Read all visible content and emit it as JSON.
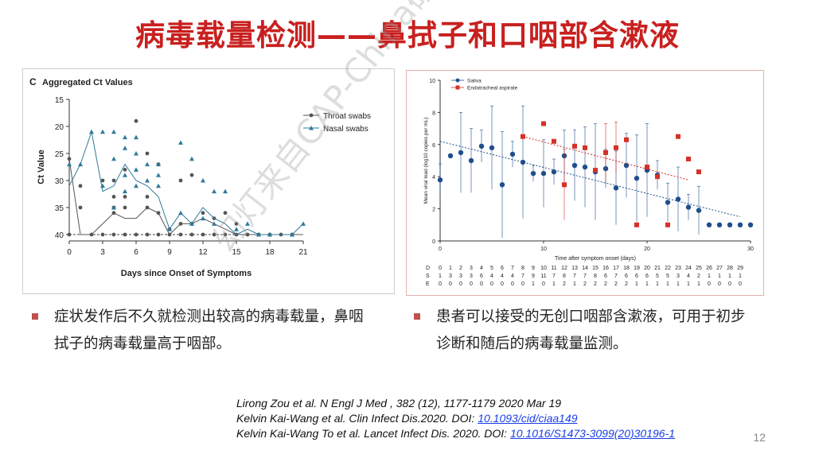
{
  "slide": {
    "title": "病毒载量检测——鼻拭子和口咽部含漱液",
    "page_number": "12",
    "watermark": "幻灯来自CAP-China研究平台"
  },
  "bullets": [
    "症状发作后不久就检测出较高的病毒载量，鼻咽拭子的病毒载量高于咽部。",
    "患者可以接受的无创口咽部含漱液，可用于初步诊断和随后的病毒载量监测。"
  ],
  "references": [
    {
      "text": "Lirong Zou et al. N Engl J Med , 382 (12), 1177-1179  2020 Mar 19",
      "doi": ""
    },
    {
      "text": "Kelvin Kai-Wang et al. Clin Infect Dis.2020. DOI: ",
      "doi": "10.1093/cid/ciaa149"
    },
    {
      "text": "Kelvin Kai-Wang To et al. Lancet Infect Dis. 2020. DOI: ",
      "doi": "10.1016/S1473-3099(20)30196-1"
    }
  ],
  "colors": {
    "title": "#c8201f",
    "throat": "#555555",
    "nasal": "#2e7a9a",
    "saliva": "#1f4e8c",
    "eta": "#d73027"
  },
  "chart_data": [
    {
      "type": "scatter",
      "panel_label": "C",
      "title": "Aggregated Ct Values",
      "xlabel": "Days since Onset of Symptoms",
      "ylabel": "Ct Value",
      "xlim": [
        0,
        21
      ],
      "ylim": [
        15,
        40
      ],
      "y_inverted": true,
      "x_ticks": [
        0,
        3,
        6,
        9,
        12,
        15,
        18,
        21
      ],
      "y_ticks": [
        15,
        20,
        25,
        30,
        35,
        40
      ],
      "legend_position": "top-right",
      "series": [
        {
          "name": "Throat swabs",
          "points": [
            [
              0,
              26
            ],
            [
              0,
              40
            ],
            [
              1,
              31
            ],
            [
              1,
              35
            ],
            [
              2,
              40
            ],
            [
              3,
              30
            ],
            [
              3,
              40
            ],
            [
              4,
              30
            ],
            [
              4,
              33
            ],
            [
              4,
              35
            ],
            [
              4,
              36
            ],
            [
              4,
              40
            ],
            [
              5,
              28
            ],
            [
              5,
              33
            ],
            [
              5,
              35
            ],
            [
              5,
              40
            ],
            [
              6,
              19
            ],
            [
              6,
              40
            ],
            [
              7,
              25
            ],
            [
              7,
              33
            ],
            [
              7,
              35
            ],
            [
              7,
              40
            ],
            [
              8,
              27
            ],
            [
              8,
              36
            ],
            [
              8,
              40
            ],
            [
              9,
              39
            ],
            [
              9,
              40
            ],
            [
              10,
              30
            ],
            [
              10,
              38
            ],
            [
              10,
              40
            ],
            [
              11,
              29
            ],
            [
              11,
              38
            ],
            [
              11,
              40
            ],
            [
              12,
              36
            ],
            [
              12,
              40
            ],
            [
              13,
              37
            ],
            [
              13,
              40
            ],
            [
              14,
              36
            ],
            [
              14,
              40
            ],
            [
              15,
              38
            ],
            [
              15,
              40
            ],
            [
              16,
              40
            ],
            [
              17,
              40
            ],
            [
              18,
              40
            ],
            [
              19,
              40
            ],
            [
              20,
              40
            ]
          ],
          "line": [
            [
              0,
              26
            ],
            [
              1,
              40
            ],
            [
              2,
              40
            ],
            [
              3,
              38
            ],
            [
              4,
              36
            ],
            [
              5,
              37
            ],
            [
              6,
              37
            ],
            [
              7,
              35
            ],
            [
              8,
              36
            ],
            [
              9,
              40
            ],
            [
              10,
              38
            ],
            [
              11,
              38
            ],
            [
              12,
              37
            ],
            [
              13,
              38
            ],
            [
              14,
              39
            ],
            [
              15,
              40
            ],
            [
              21,
              40
            ]
          ]
        },
        {
          "name": "Nasal swabs",
          "points": [
            [
              0,
              27
            ],
            [
              1,
              27
            ],
            [
              2,
              21
            ],
            [
              3,
              21
            ],
            [
              3,
              31
            ],
            [
              4,
              21
            ],
            [
              4,
              26
            ],
            [
              4,
              35
            ],
            [
              5,
              22
            ],
            [
              5,
              24
            ],
            [
              5,
              29
            ],
            [
              5,
              32
            ],
            [
              6,
              22
            ],
            [
              6,
              25
            ],
            [
              6,
              28
            ],
            [
              6,
              31
            ],
            [
              7,
              27
            ],
            [
              7,
              30
            ],
            [
              8,
              27
            ],
            [
              8,
              29
            ],
            [
              8,
              31
            ],
            [
              9,
              39
            ],
            [
              10,
              23
            ],
            [
              10,
              36
            ],
            [
              11,
              26
            ],
            [
              11,
              38
            ],
            [
              12,
              30
            ],
            [
              12,
              37
            ],
            [
              13,
              32
            ],
            [
              13,
              38
            ],
            [
              14,
              32
            ],
            [
              15,
              39
            ],
            [
              16,
              38
            ],
            [
              17,
              40
            ],
            [
              18,
              40
            ],
            [
              20,
              40
            ],
            [
              21,
              38
            ]
          ],
          "line": [
            [
              0,
              31
            ],
            [
              1,
              27
            ],
            [
              2,
              21
            ],
            [
              3,
              32
            ],
            [
              4,
              31
            ],
            [
              5,
              27
            ],
            [
              6,
              30
            ],
            [
              7,
              31
            ],
            [
              8,
              33
            ],
            [
              9,
              39
            ],
            [
              10,
              36
            ],
            [
              11,
              38
            ],
            [
              12,
              35
            ],
            [
              13,
              37
            ],
            [
              14,
              38
            ],
            [
              15,
              40
            ],
            [
              16,
              39
            ],
            [
              17,
              40
            ],
            [
              18,
              40
            ],
            [
              19,
              40
            ],
            [
              20,
              40
            ],
            [
              21,
              38
            ]
          ]
        }
      ]
    },
    {
      "type": "scatter",
      "xlabel": "Time after symptom onset (days)",
      "ylabel": "Mean viral load (log10 copies per mL)",
      "xlim": [
        0,
        30
      ],
      "ylim": [
        0,
        10
      ],
      "x_ticks": [
        0,
        10,
        20,
        30
      ],
      "y_ticks": [
        0,
        2,
        4,
        6,
        8,
        10
      ],
      "legend_position": "top-left",
      "series": [
        {
          "name": "Saliva",
          "points": [
            [
              0,
              3.8
            ],
            [
              1,
              5.3
            ],
            [
              2,
              5.5
            ],
            [
              3,
              5.0
            ],
            [
              4,
              5.9
            ],
            [
              5,
              5.8
            ],
            [
              6,
              3.5
            ],
            [
              7,
              5.4
            ],
            [
              8,
              4.9
            ],
            [
              9,
              4.2
            ],
            [
              10,
              4.2
            ],
            [
              11,
              4.3
            ],
            [
              12,
              5.3
            ],
            [
              13,
              4.7
            ],
            [
              14,
              4.6
            ],
            [
              15,
              4.3
            ],
            [
              16,
              4.5
            ],
            [
              17,
              3.3
            ],
            [
              18,
              4.7
            ],
            [
              19,
              3.9
            ],
            [
              20,
              4.4
            ],
            [
              21,
              4.1
            ],
            [
              22,
              2.4
            ],
            [
              23,
              2.6
            ],
            [
              24,
              2.1
            ],
            [
              25,
              1.9
            ],
            [
              26,
              1.0
            ],
            [
              27,
              1.0
            ],
            [
              28,
              1.0
            ],
            [
              29,
              1.0
            ],
            [
              30,
              1.0
            ]
          ],
          "error_bars": [
            [
              0,
              1.0
            ],
            [
              1,
              0.0
            ],
            [
              2,
              2.5
            ],
            [
              3,
              2.0
            ],
            [
              4,
              1.0
            ],
            [
              5,
              2.6
            ],
            [
              6,
              3.3
            ],
            [
              7,
              0.8
            ],
            [
              8,
              3.5
            ],
            [
              9,
              0.5
            ],
            [
              10,
              2.1
            ],
            [
              11,
              0.8
            ],
            [
              12,
              1.6
            ],
            [
              13,
              2.2
            ],
            [
              14,
              2.5
            ],
            [
              15,
              3.0
            ],
            [
              16,
              1.2
            ],
            [
              17,
              2.3
            ],
            [
              18,
              2.0
            ],
            [
              19,
              2.7
            ],
            [
              20,
              2.9
            ],
            [
              21,
              0.9
            ],
            [
              22,
              1.2
            ],
            [
              23,
              2.0
            ],
            [
              24,
              0.8
            ],
            [
              25,
              1.5
            ]
          ],
          "trend": [
            [
              0,
              6.2
            ],
            [
              29,
              1.5
            ]
          ]
        },
        {
          "name": "Endotracheal aspirate",
          "points": [
            [
              8,
              6.5
            ],
            [
              10,
              7.3
            ],
            [
              11,
              6.2
            ],
            [
              12,
              3.5
            ],
            [
              13,
              5.9
            ],
            [
              14,
              5.8
            ],
            [
              15,
              4.4
            ],
            [
              16,
              5.5
            ],
            [
              17,
              5.8
            ],
            [
              18,
              6.3
            ],
            [
              19,
              1.0
            ],
            [
              20,
              4.6
            ],
            [
              21,
              4.0
            ],
            [
              22,
              1.0
            ],
            [
              23,
              6.5
            ],
            [
              24,
              5.1
            ],
            [
              25,
              4.3
            ]
          ],
          "error_bars": [
            [
              12,
              2.2
            ],
            [
              16,
              1.8
            ],
            [
              17,
              1.6
            ]
          ],
          "trend": [
            [
              8,
              6.5
            ],
            [
              24,
              3.8
            ]
          ]
        }
      ],
      "table": {
        "row_labels": [
          "D",
          "S",
          "E"
        ],
        "days": [
          "0",
          "1",
          "2",
          "3",
          "4",
          "5",
          "6",
          "7",
          "8",
          "9",
          "10",
          "11",
          "12",
          "13",
          "14",
          "15",
          "16",
          "17",
          "18",
          "19",
          "20",
          "21",
          "22",
          "23",
          "24",
          "25",
          "26",
          "27",
          "28",
          "29"
        ],
        "S": [
          "1",
          "3",
          "3",
          "3",
          "6",
          "4",
          "4",
          "4",
          "7",
          "9",
          "11",
          "7",
          "8",
          "7",
          "7",
          "8",
          "6",
          "7",
          "6",
          "6",
          "6",
          "5",
          "5",
          "3",
          "4",
          "2",
          "1",
          "1",
          "1",
          "1"
        ],
        "E": [
          "0",
          "0",
          "0",
          "0",
          "0",
          "0",
          "0",
          "0",
          "0",
          "1",
          "0",
          "1",
          "2",
          "1",
          "2",
          "2",
          "2",
          "2",
          "2",
          "1",
          "1",
          "1",
          "1",
          "1",
          "1",
          "1",
          "0",
          "0",
          "0",
          "0"
        ]
      }
    }
  ]
}
